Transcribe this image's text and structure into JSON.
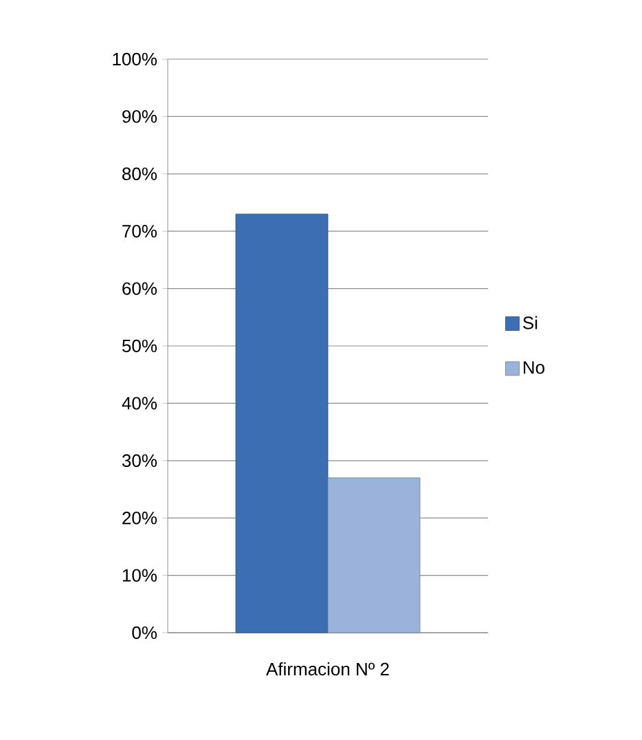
{
  "chart_data": {
    "type": "bar",
    "categories": [
      "Afirmacion Nº 2"
    ],
    "series": [
      {
        "name": "Si",
        "color": "#3c6eb4",
        "values": [
          73
        ]
      },
      {
        "name": "No",
        "color": "#9bb3da",
        "values": [
          27
        ]
      }
    ],
    "ylim": [
      0,
      100
    ],
    "yticks": [
      {
        "value": 0,
        "label": "0%"
      },
      {
        "value": 10,
        "label": "10%"
      },
      {
        "value": 20,
        "label": "20%"
      },
      {
        "value": 30,
        "label": "30%"
      },
      {
        "value": 40,
        "label": "40%"
      },
      {
        "value": 50,
        "label": "50%"
      },
      {
        "value": 60,
        "label": "60%"
      },
      {
        "value": 70,
        "label": "70%"
      },
      {
        "value": 80,
        "label": "80%"
      },
      {
        "value": 90,
        "label": "90%"
      },
      {
        "value": 100,
        "label": "100%"
      }
    ],
    "grid": "y",
    "legend": "right"
  }
}
